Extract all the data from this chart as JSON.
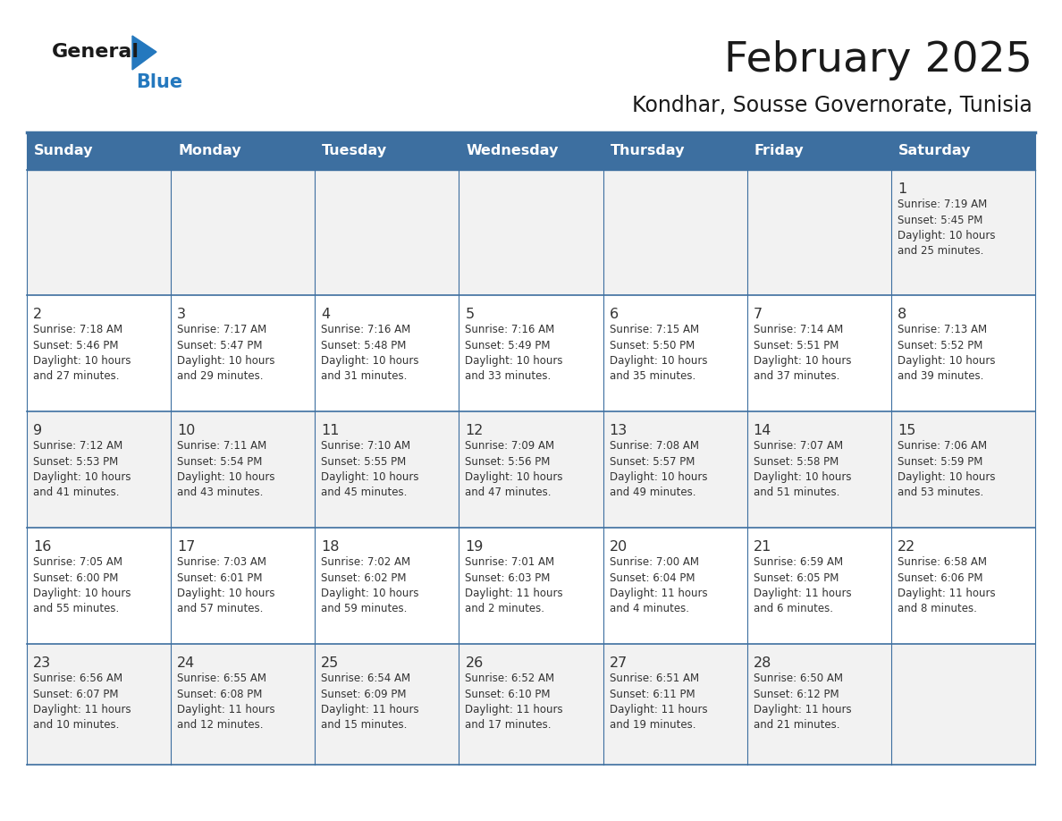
{
  "title": "February 2025",
  "subtitle": "Kondhar, Sousse Governorate, Tunisia",
  "days_of_week": [
    "Sunday",
    "Monday",
    "Tuesday",
    "Wednesday",
    "Thursday",
    "Friday",
    "Saturday"
  ],
  "header_bg": "#3D6FA0",
  "header_fg": "#FFFFFF",
  "cell_bg_light": "#F2F2F2",
  "cell_bg_white": "#FFFFFF",
  "cell_border": "#3D6FA0",
  "day_num_color": "#333333",
  "text_color": "#333333",
  "logo_general_color": "#1a1a1a",
  "logo_blue_color": "#2478BE",
  "calendar_data": [
    [
      null,
      null,
      null,
      null,
      null,
      null,
      1
    ],
    [
      2,
      3,
      4,
      5,
      6,
      7,
      8
    ],
    [
      9,
      10,
      11,
      12,
      13,
      14,
      15
    ],
    [
      16,
      17,
      18,
      19,
      20,
      21,
      22
    ],
    [
      23,
      24,
      25,
      26,
      27,
      28,
      null
    ]
  ],
  "sunrise_data": {
    "1": "Sunrise: 7:19 AM\nSunset: 5:45 PM\nDaylight: 10 hours\nand 25 minutes.",
    "2": "Sunrise: 7:18 AM\nSunset: 5:46 PM\nDaylight: 10 hours\nand 27 minutes.",
    "3": "Sunrise: 7:17 AM\nSunset: 5:47 PM\nDaylight: 10 hours\nand 29 minutes.",
    "4": "Sunrise: 7:16 AM\nSunset: 5:48 PM\nDaylight: 10 hours\nand 31 minutes.",
    "5": "Sunrise: 7:16 AM\nSunset: 5:49 PM\nDaylight: 10 hours\nand 33 minutes.",
    "6": "Sunrise: 7:15 AM\nSunset: 5:50 PM\nDaylight: 10 hours\nand 35 minutes.",
    "7": "Sunrise: 7:14 AM\nSunset: 5:51 PM\nDaylight: 10 hours\nand 37 minutes.",
    "8": "Sunrise: 7:13 AM\nSunset: 5:52 PM\nDaylight: 10 hours\nand 39 minutes.",
    "9": "Sunrise: 7:12 AM\nSunset: 5:53 PM\nDaylight: 10 hours\nand 41 minutes.",
    "10": "Sunrise: 7:11 AM\nSunset: 5:54 PM\nDaylight: 10 hours\nand 43 minutes.",
    "11": "Sunrise: 7:10 AM\nSunset: 5:55 PM\nDaylight: 10 hours\nand 45 minutes.",
    "12": "Sunrise: 7:09 AM\nSunset: 5:56 PM\nDaylight: 10 hours\nand 47 minutes.",
    "13": "Sunrise: 7:08 AM\nSunset: 5:57 PM\nDaylight: 10 hours\nand 49 minutes.",
    "14": "Sunrise: 7:07 AM\nSunset: 5:58 PM\nDaylight: 10 hours\nand 51 minutes.",
    "15": "Sunrise: 7:06 AM\nSunset: 5:59 PM\nDaylight: 10 hours\nand 53 minutes.",
    "16": "Sunrise: 7:05 AM\nSunset: 6:00 PM\nDaylight: 10 hours\nand 55 minutes.",
    "17": "Sunrise: 7:03 AM\nSunset: 6:01 PM\nDaylight: 10 hours\nand 57 minutes.",
    "18": "Sunrise: 7:02 AM\nSunset: 6:02 PM\nDaylight: 10 hours\nand 59 minutes.",
    "19": "Sunrise: 7:01 AM\nSunset: 6:03 PM\nDaylight: 11 hours\nand 2 minutes.",
    "20": "Sunrise: 7:00 AM\nSunset: 6:04 PM\nDaylight: 11 hours\nand 4 minutes.",
    "21": "Sunrise: 6:59 AM\nSunset: 6:05 PM\nDaylight: 11 hours\nand 6 minutes.",
    "22": "Sunrise: 6:58 AM\nSunset: 6:06 PM\nDaylight: 11 hours\nand 8 minutes.",
    "23": "Sunrise: 6:56 AM\nSunset: 6:07 PM\nDaylight: 11 hours\nand 10 minutes.",
    "24": "Sunrise: 6:55 AM\nSunset: 6:08 PM\nDaylight: 11 hours\nand 12 minutes.",
    "25": "Sunrise: 6:54 AM\nSunset: 6:09 PM\nDaylight: 11 hours\nand 15 minutes.",
    "26": "Sunrise: 6:52 AM\nSunset: 6:10 PM\nDaylight: 11 hours\nand 17 minutes.",
    "27": "Sunrise: 6:51 AM\nSunset: 6:11 PM\nDaylight: 11 hours\nand 19 minutes.",
    "28": "Sunrise: 6:50 AM\nSunset: 6:12 PM\nDaylight: 11 hours\nand 21 minutes."
  }
}
